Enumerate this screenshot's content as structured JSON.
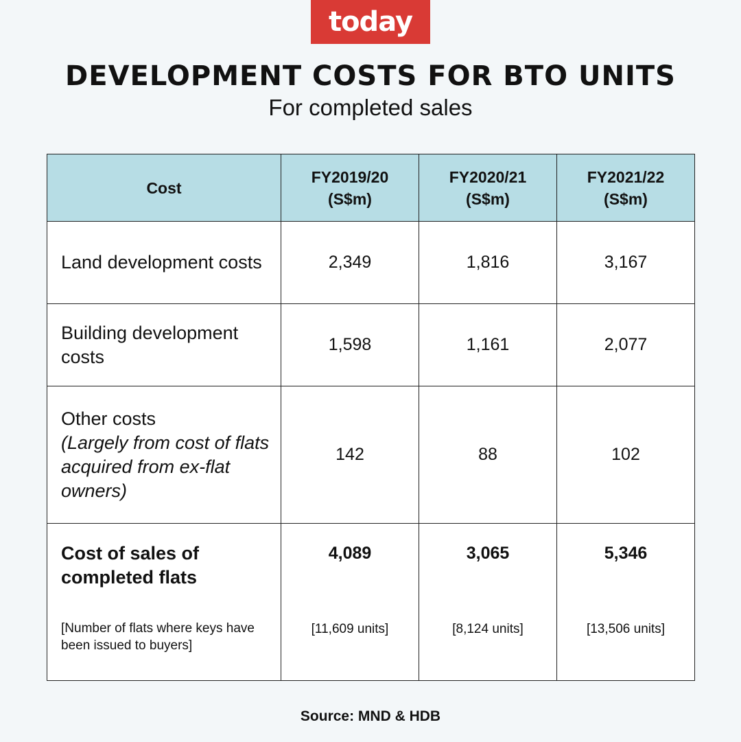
{
  "logo": {
    "text": "today",
    "color": "#d93a35"
  },
  "title": "DEVELOPMENT COSTS FOR BTO UNITS",
  "subtitle": "For completed sales",
  "table": {
    "header_color": "#b7dde5",
    "headers": [
      {
        "line1": "Cost",
        "line2": ""
      },
      {
        "line1": "FY2019/20",
        "line2": "(S$m)"
      },
      {
        "line1": "FY2020/21",
        "line2": "(S$m)"
      },
      {
        "line1": "FY2021/22",
        "line2": "(S$m)"
      }
    ],
    "rows": [
      {
        "label": "Land development costs",
        "note": "",
        "values": [
          "2,349",
          "1,816",
          "3,167"
        ]
      },
      {
        "label": "Building development costs",
        "note": "",
        "values": [
          "1,598",
          "1,161",
          "2,077"
        ]
      },
      {
        "label": "Other costs",
        "note": "(Largely from cost of flats acquired from ex-flat owners)",
        "values": [
          "142",
          "88",
          "102"
        ]
      }
    ],
    "total": {
      "label": "Cost of sales of completed flats",
      "sublabel": "[Number of flats where keys have been issued to buyers]",
      "values": [
        "4,089",
        "3,065",
        "5,346"
      ],
      "units": [
        "[11,609 units]",
        "[8,124 units]",
        "[13,506 units]"
      ]
    }
  },
  "source": "Source: MND & HDB"
}
